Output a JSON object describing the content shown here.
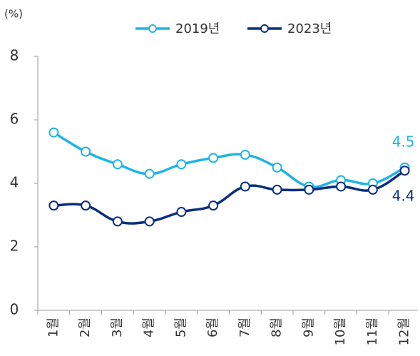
{
  "chart_data": {
    "type": "line",
    "y_axis_label": "(%)",
    "categories": [
      "1월",
      "2월",
      "3월",
      "4월",
      "5월",
      "6월",
      "7월",
      "8월",
      "9월",
      "10월",
      "11월",
      "12월"
    ],
    "series": [
      {
        "name": "2019년",
        "color": "#1fb4e6",
        "values": [
          5.6,
          5.0,
          4.6,
          4.3,
          4.6,
          4.8,
          4.9,
          4.5,
          3.9,
          4.1,
          4.0,
          4.5
        ]
      },
      {
        "name": "2023년",
        "color": "#0a2f7f",
        "values": [
          3.3,
          3.3,
          2.8,
          2.8,
          3.1,
          3.3,
          3.9,
          3.8,
          3.8,
          3.9,
          3.8,
          4.4
        ]
      }
    ],
    "ylim": [
      0,
      8
    ],
    "yticks": [
      0,
      2,
      4,
      6,
      8
    ],
    "grid": false
  }
}
